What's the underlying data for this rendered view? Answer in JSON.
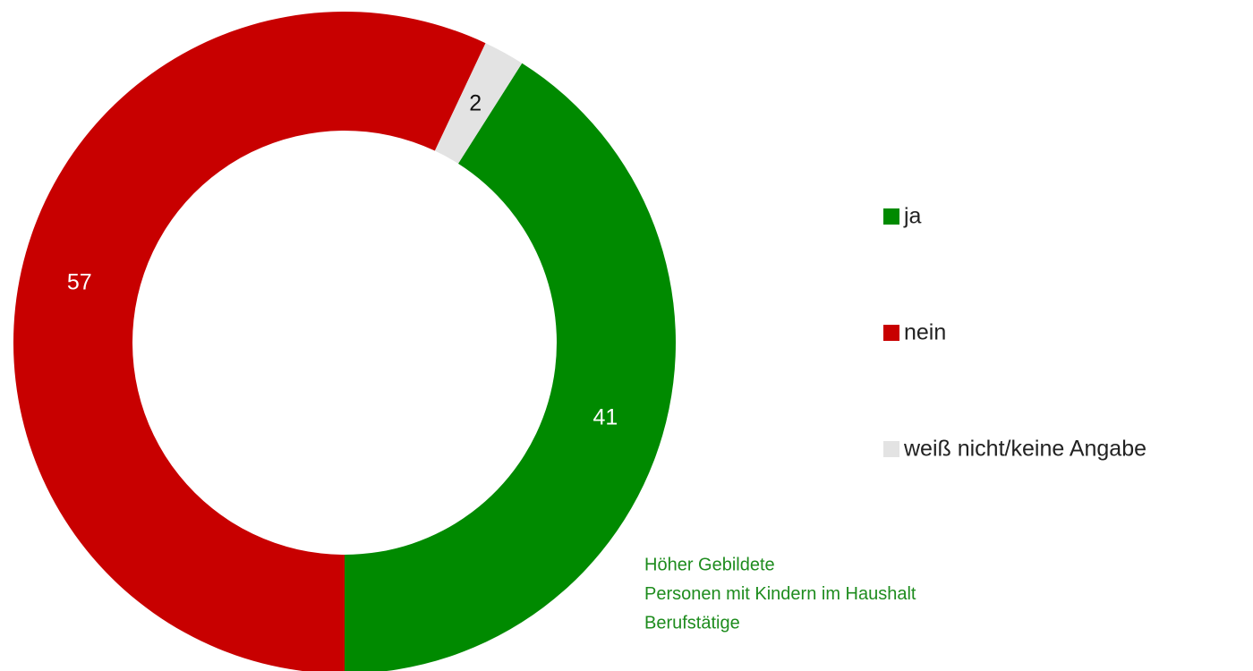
{
  "chart_data": {
    "type": "donut",
    "categories": [
      "ja",
      "nein",
      "weiß nicht/keine Angabe"
    ],
    "values": [
      41,
      57,
      2
    ],
    "colors": [
      "#008a00",
      "#c80000",
      "#e3e3e3"
    ],
    "legend": "right",
    "annotation": [
      "Höher Gebildete",
      "Personen mit Kindern im Haushalt",
      "Berufstätige"
    ],
    "annotation_color": "#1e8c1e"
  }
}
